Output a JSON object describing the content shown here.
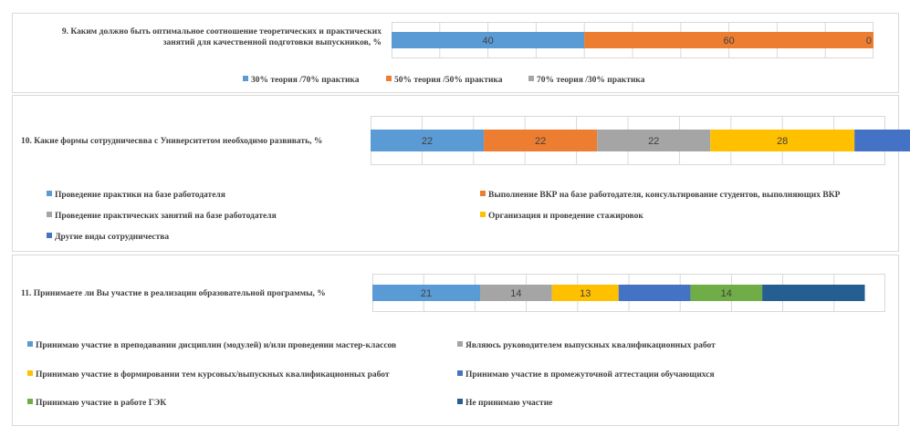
{
  "chart_data": [
    {
      "type": "bar",
      "orientation": "horizontal-stacked",
      "question": "9. Каким должно быть оптимальное соотношение теоретических и практических занятий для качественной подготовки выпускников, %",
      "question_lines": [
        "9. Каким должно быть оптимальное соотношение теоретических и практических",
        "занятий для качественной подготовки выпускников, %"
      ],
      "xlim": [
        0,
        100
      ],
      "grid": true,
      "legend_placement": "bottom",
      "series": [
        {
          "name": "30% теория /70% практика",
          "value": 40,
          "color": "#5b9bd5",
          "label": "40"
        },
        {
          "name": "50% теория /50% практика",
          "value": 60,
          "color": "#ed7d31",
          "label": "60"
        },
        {
          "name": "70% теория /30% практика",
          "value": 0,
          "color": "#a5a5a5",
          "label": "0"
        }
      ]
    },
    {
      "type": "bar",
      "orientation": "horizontal-stacked",
      "question": "10. Какие формы сотрудничесвва с Университетом необходимо развивать, %",
      "question_lines": [
        "10. Какие формы сотрудничесвва с Университетом необходимо развивать, %"
      ],
      "xlim": [
        0,
        100
      ],
      "grid": true,
      "legend_placement": "bottom",
      "series": [
        {
          "name": "Проведение практики на базе работодателя",
          "value": 22,
          "color": "#5b9bd5",
          "label": "22"
        },
        {
          "name": "Выполнение ВКР на базе работодателя, консультирование студентов, выполняющих ВКР",
          "value": 22,
          "color": "#ed7d31",
          "label": "22"
        },
        {
          "name": "Проведение практических занятий на базе работодателя",
          "value": 22,
          "color": "#a5a5a5",
          "label": "22"
        },
        {
          "name": "Организация и проведение стажировок",
          "value": 28,
          "color": "#ffc000",
          "label": "28"
        },
        {
          "name": "Другие виды сотрудничества",
          "value": 16,
          "color": "#4472c4",
          "label": ""
        }
      ]
    },
    {
      "type": "bar",
      "orientation": "horizontal-stacked",
      "question": "11. Принимаете ли Вы участие в реализации образовательной программы, %",
      "question_lines": [
        "11. Принимаете ли Вы участие в реализации образовательной программы, %"
      ],
      "xlim": [
        0,
        100
      ],
      "grid": true,
      "legend_placement": "bottom",
      "series": [
        {
          "name": "Принимаю участие в преподавании дисциплин (модулей) и/или проведении мастер-классов",
          "value": 21,
          "color": "#5b9bd5",
          "label": "21"
        },
        {
          "name": "Являюсь руководителем выпускных квалификационных работ",
          "value": 14,
          "color": "#a5a5a5",
          "label": "14"
        },
        {
          "name": "Принимаю участие в формировании тем курсовых/выпускных квалификационных работ",
          "value": 13,
          "color": "#ffc000",
          "label": "13"
        },
        {
          "name": "Принимаю участие в промежуточной аттестации обучающихся",
          "value": 14,
          "color": "#4472c4",
          "label": ""
        },
        {
          "name": "Принимаю участие в работе ГЭК",
          "value": 14,
          "color": "#70ad47",
          "label": "14"
        },
        {
          "name": "Не принимаю участие",
          "value": 20,
          "color": "#255e91",
          "label": ""
        }
      ]
    }
  ]
}
